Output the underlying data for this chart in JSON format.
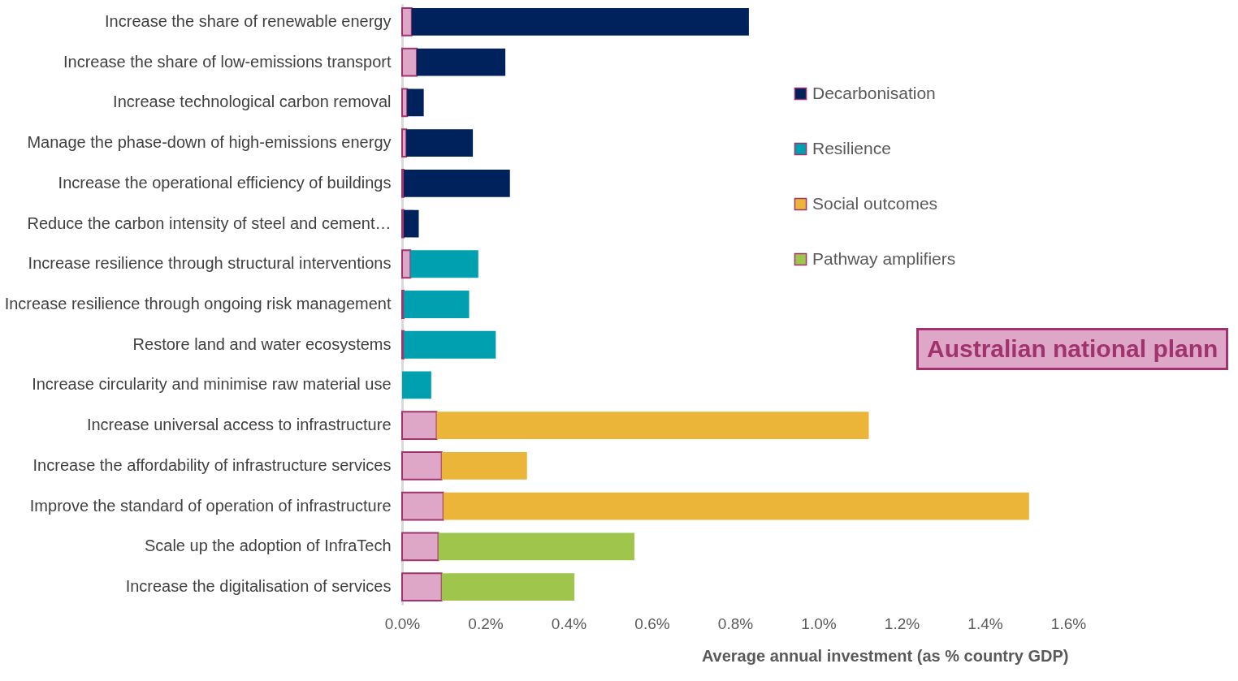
{
  "chart_data": {
    "type": "bar",
    "orientation": "horizontal",
    "stacked": true,
    "categories": [
      "Increase the share of renewable energy",
      "Increase the share of low-emissions transport",
      "Increase technological carbon removal",
      "Manage the phase-down of high-emissions energy",
      "Increase the operational efficiency of buildings",
      "Reduce the carbon intensity of steel and cement…",
      "Increase resilience through structural interventions",
      "Increase resilience through ongoing risk management",
      "Restore land and water ecosystems",
      "Increase circularity and minimise raw material use",
      "Increase universal access to infrastructure",
      "Increase the affordability of infrastructure services",
      "Improve the standard of operation of infrastructure",
      "Scale up the adoption of InfraTech",
      "Increase the digitalisation of services"
    ],
    "series": [
      {
        "color": "#dea7c7",
        "values": [
          0.023,
          0.035,
          0.012,
          0.01,
          0.004,
          0.004,
          0.02,
          0.004,
          0.004,
          null,
          0.083,
          0.095,
          0.099,
          0.087,
          0.095
        ]
      },
      {
        "name": "Decarbonisation",
        "color": "#00225c",
        "values": [
          0.81,
          0.213,
          0.04,
          0.16,
          0.255,
          0.036,
          null,
          null,
          null,
          null,
          null,
          null,
          null,
          null,
          null
        ]
      },
      {
        "name": "Resilience",
        "color": "#00a0b0",
        "values": [
          null,
          null,
          null,
          null,
          null,
          null,
          0.163,
          0.157,
          0.221,
          0.07,
          null,
          null,
          null,
          null,
          null
        ]
      },
      {
        "name": "Social outcomes",
        "color": "#ebb53a",
        "values": [
          null,
          null,
          null,
          null,
          null,
          null,
          null,
          null,
          null,
          null,
          1.038,
          0.205,
          1.407,
          null,
          null
        ]
      },
      {
        "name": "Pathway amplifiers",
        "color": "#a0c54c",
        "values": [
          null,
          null,
          null,
          null,
          null,
          null,
          null,
          null,
          null,
          null,
          null,
          null,
          null,
          0.471,
          0.319
        ]
      }
    ],
    "xlim": [
      0,
      1.6
    ],
    "xticks": [
      {
        "value": 0,
        "label": "0.0%"
      },
      {
        "value": 0.2,
        "label": "0.2%"
      },
      {
        "value": 0.4,
        "label": "0.4%"
      },
      {
        "value": 0.6,
        "label": "0.6%"
      },
      {
        "value": 0.8,
        "label": "0.8%"
      },
      {
        "value": 1.0,
        "label": "1.0%"
      },
      {
        "value": 1.2,
        "label": "1.2%"
      },
      {
        "value": 1.4,
        "label": "1.4%"
      },
      {
        "value": 1.6,
        "label": "1.6%"
      }
    ],
    "xlabel": "Average annual investment (as % country GDP)",
    "legend": "right",
    "grid": false,
    "annotations": [
      "Australian national plann"
    ]
  }
}
